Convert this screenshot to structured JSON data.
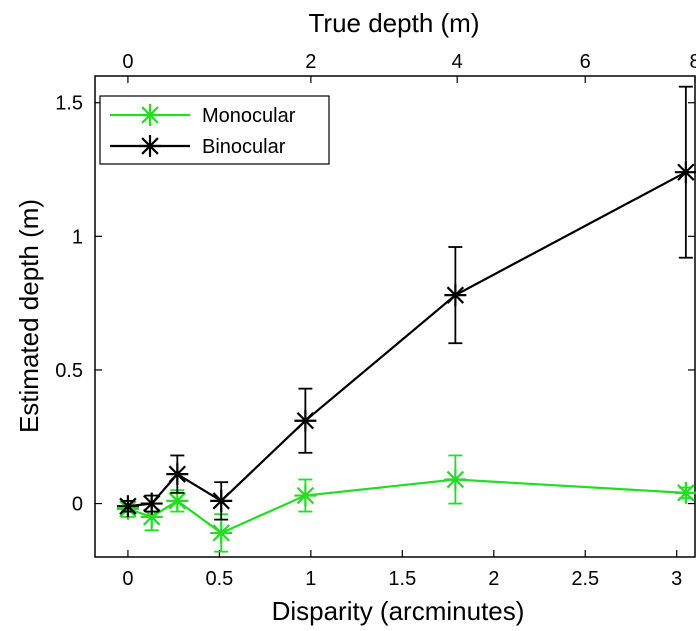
{
  "chart_data": {
    "type": "line",
    "xlabel": "Disparity (arcminutes)",
    "ylabel": "Estimated depth (m)",
    "top_xlabel": "True depth (m)",
    "xlim": [
      -0.18,
      3.1
    ],
    "ylim": [
      -0.2,
      1.6
    ],
    "x_ticks": [
      0,
      0.5,
      1,
      1.5,
      2,
      2.5,
      3
    ],
    "x_tick_labels": [
      "0",
      "0.5",
      "1",
      "1.5",
      "2",
      "2.5",
      "3"
    ],
    "y_ticks": [
      0,
      0.5,
      1,
      1.5
    ],
    "y_tick_labels": [
      "0",
      "0.5",
      "1",
      "1.5"
    ],
    "top_ticks": [
      {
        "label": "0",
        "disparity": 0
      },
      {
        "label": "2",
        "disparity": 1
      },
      {
        "label": "4",
        "disparity": 1.8
      },
      {
        "label": "6",
        "disparity": 2.5
      },
      {
        "label": "8",
        "disparity": 3.1
      }
    ],
    "legend_position": "top-left",
    "series": [
      {
        "name": "Monocular",
        "color": "#22dd22",
        "marker": "asterisk",
        "x": [
          0,
          0.13,
          0.27,
          0.51,
          0.97,
          1.79,
          3.05
        ],
        "y": [
          -0.02,
          -0.05,
          0.01,
          -0.11,
          0.03,
          0.09,
          0.04
        ],
        "err": [
          0.03,
          0.05,
          0.04,
          0.07,
          0.06,
          0.09,
          0.02
        ]
      },
      {
        "name": "Binocular",
        "color": "#000000",
        "marker": "asterisk",
        "x": [
          0,
          0.13,
          0.27,
          0.51,
          0.97,
          1.79,
          3.05
        ],
        "y": [
          -0.01,
          0.0,
          0.11,
          0.01,
          0.31,
          0.78,
          1.24
        ],
        "err": [
          0.02,
          0.03,
          0.07,
          0.07,
          0.12,
          0.18,
          0.32
        ]
      }
    ]
  }
}
